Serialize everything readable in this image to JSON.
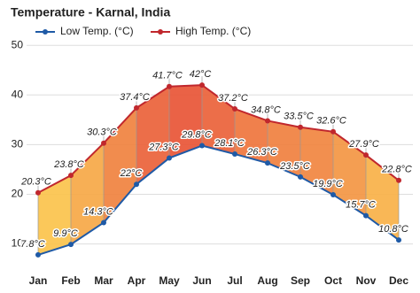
{
  "chart_data": {
    "type": "line",
    "title": "Temperature - Karnal, India",
    "categories": [
      "Jan",
      "Feb",
      "Mar",
      "Apr",
      "May",
      "Jun",
      "Jul",
      "Aug",
      "Sep",
      "Oct",
      "Nov",
      "Dec"
    ],
    "series": [
      {
        "name": "Low Temp. (°C)",
        "color": "#1f5aa6",
        "values": [
          7.8,
          9.9,
          14.3,
          22,
          27.3,
          29.8,
          28.1,
          26.3,
          23.5,
          19.9,
          15.7,
          10.8
        ],
        "value_labels": [
          "7.8°C",
          "9.9°C",
          "14.3°C",
          "22°C",
          "27.3°C",
          "29.8°C",
          "28.1°C",
          "26.3°C",
          "23.5°C",
          "19.9°C",
          "15.7°C",
          "10.8°C"
        ]
      },
      {
        "name": "High Temp. (°C)",
        "color": "#c0272d",
        "values": [
          20.3,
          23.8,
          30.3,
          37.4,
          41.7,
          42,
          37.2,
          34.8,
          33.5,
          32.6,
          27.9,
          22.8
        ],
        "value_labels": [
          "20.3°C",
          "23.8°C",
          "30.3°C",
          "37.4°C",
          "41.7°C",
          "42°C",
          "37.2°C",
          "34.8°C",
          "33.5°C",
          "32.6°C",
          "27.9°C",
          "22.8°C"
        ]
      }
    ],
    "ylim": [
      6,
      52
    ],
    "yticks": [
      10,
      20,
      30,
      40,
      50
    ],
    "grid": true
  }
}
